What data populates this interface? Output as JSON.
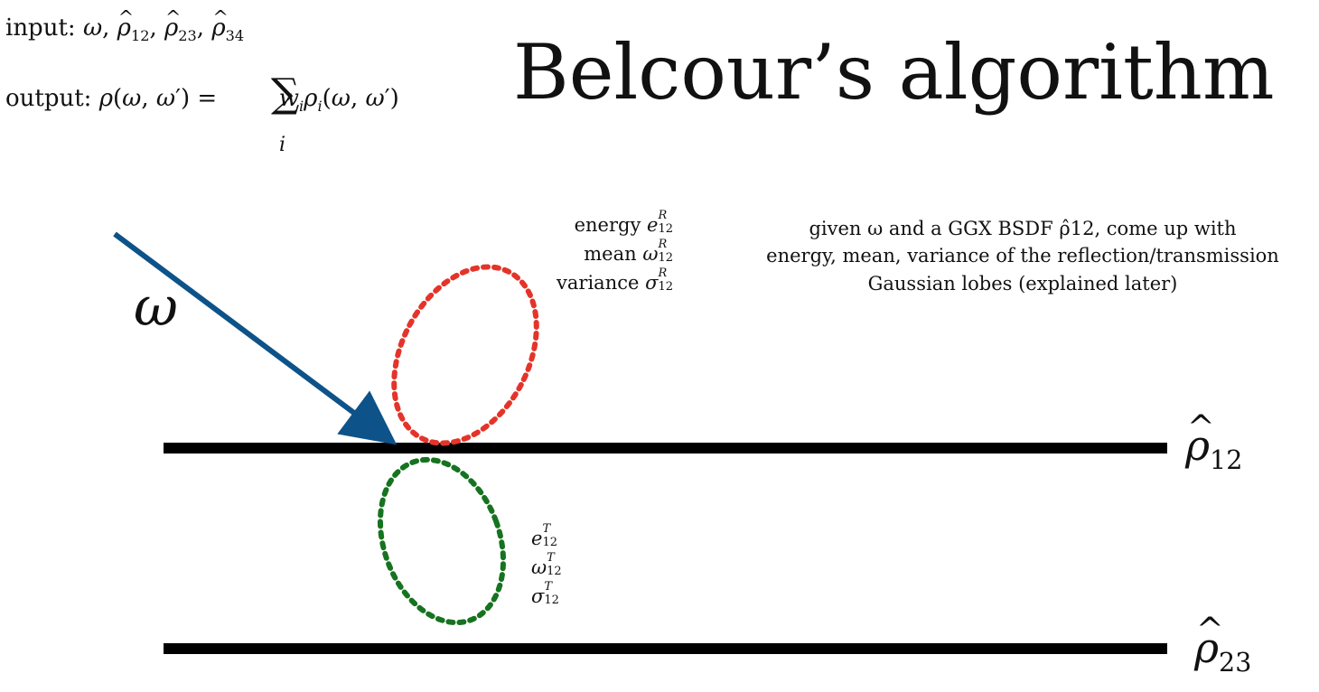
{
  "title": "Belcour’s algorithm",
  "formulas": {
    "input_label": "input:",
    "input_vars": [
      "ω",
      "ρ̂12",
      "ρ̂23",
      "ρ̂34"
    ],
    "output_label": "output:",
    "output_expr": "ρ(ω, ω′) = Σ_i w_i ρ_i(ω, ω′)"
  },
  "diagram": {
    "incident_label": "ω",
    "reflection_stats": {
      "energy_label": "energy",
      "mean_label": "mean",
      "variance_label": "variance",
      "energy_sym": "e",
      "mean_sym": "ω",
      "variance_sym": "σ",
      "sub": "12",
      "sup": "R"
    },
    "transmission_stats": {
      "energy_sym": "e",
      "mean_sym": "ω",
      "variance_sym": "σ",
      "sub": "12",
      "sup": "T"
    },
    "layers": [
      {
        "label_base": "ρ",
        "label_sub": "12"
      },
      {
        "label_base": "ρ",
        "label_sub": "23"
      }
    ],
    "description": [
      "given ω and a GGX BSDF ρ̂12, come up with",
      "energy, mean, variance of the reflection/transmission",
      "Gaussian lobes (explained later)"
    ],
    "colors": {
      "arrow": "#0d5389",
      "reflection_lobe": "#e4342a",
      "transmission_lobe": "#16731f",
      "layer_line": "#000000"
    }
  }
}
